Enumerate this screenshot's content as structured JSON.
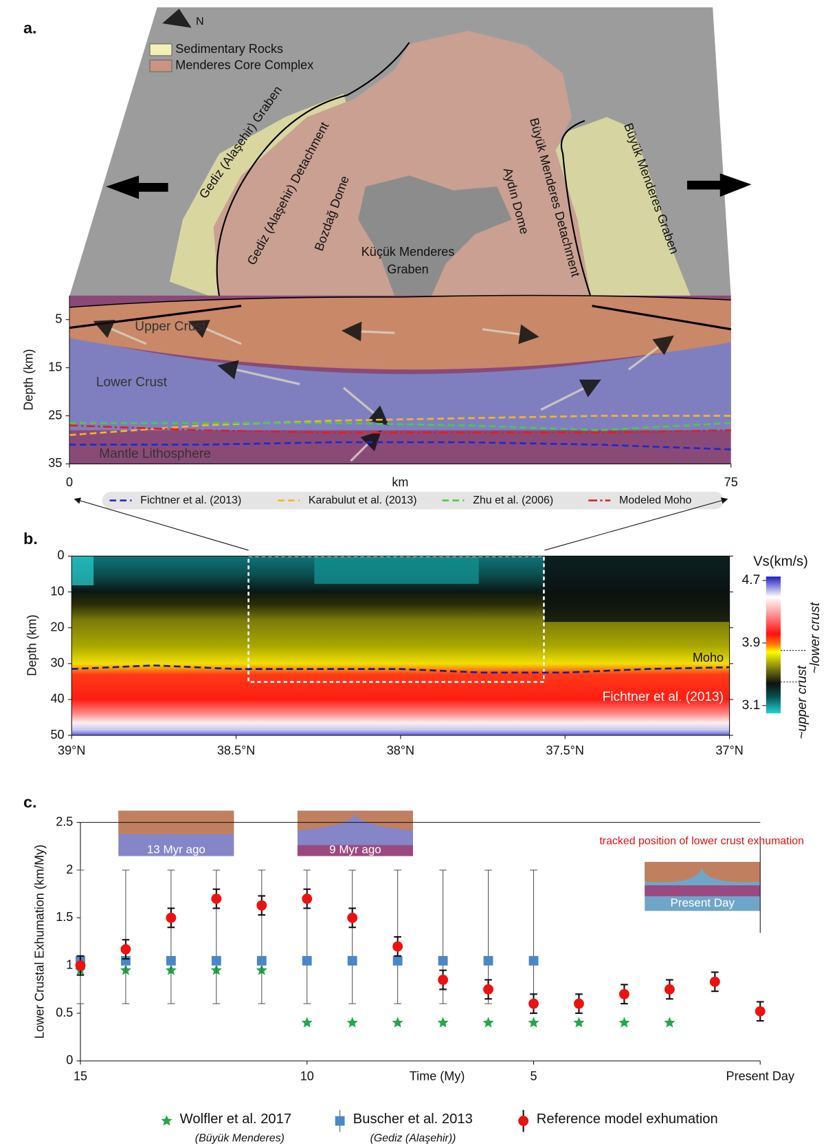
{
  "chart_data": [
    {
      "type": "section",
      "panel_label": "a.",
      "north_label": "N",
      "legend_areas": [
        {
          "name": "Sedimentary Rocks",
          "color": "#f4efb4"
        },
        {
          "name": "Menderes Core Complex",
          "color": "#c99483"
        }
      ],
      "map_labels": [
        "Gediz (Alaşehir) Graben",
        "Gediz (Alaşehir) Detachment",
        "Bozdağ Dome",
        [
          "Küçük Menderes",
          "Graben"
        ],
        "Aydın Dome",
        "Büyük Menderes Detachment",
        "Büyük Menderes Graben"
      ],
      "layer_labels": [
        "Upper Crust",
        "Lower Crust",
        "Mantle Lithosphere"
      ],
      "xlabel": "km",
      "ylabel": "Depth (km)",
      "xlim": [
        0,
        75
      ],
      "xticks": [
        0,
        75
      ],
      "ylim": [
        0,
        35
      ],
      "yticks": [
        5,
        15,
        25,
        35
      ],
      "y_inverted": true,
      "x": [
        0,
        15,
        30,
        45,
        60,
        75
      ],
      "series": [
        {
          "name": "Fichtner et al. (2013)",
          "color": "#1a2ad0",
          "dash": "dash",
          "values": [
            31,
            31,
            30.5,
            30.5,
            31,
            32
          ]
        },
        {
          "name": "Karabulut et al. (2013)",
          "color": "#f5b52a",
          "dash": "dash",
          "values": [
            29,
            27,
            26,
            25.5,
            25,
            25
          ]
        },
        {
          "name": "Zhu et al. (2006)",
          "color": "#44d040",
          "dash": "dash",
          "values": [
            26.5,
            26.5,
            26.5,
            27,
            28,
            26.5
          ]
        },
        {
          "name": "Modeled Moho",
          "color": "#e02020",
          "dash": "dashdot",
          "values": [
            27,
            28,
            28.5,
            28.5,
            28.5,
            28
          ]
        }
      ]
    },
    {
      "type": "contour",
      "panel_label": "b.",
      "ylabel": "Depth (km)",
      "xlim": [
        39,
        37
      ],
      "xticks": [
        {
          "value": 39,
          "label": "39°N"
        },
        {
          "value": 38.5,
          "label": "38.5°N"
        },
        {
          "value": 38,
          "label": "38°N"
        },
        {
          "value": 37.5,
          "label": "37.5°N"
        },
        {
          "value": 37,
          "label": "37°N"
        }
      ],
      "ylim": [
        0,
        50
      ],
      "yticks": [
        0,
        10,
        20,
        30,
        40,
        50
      ],
      "y_inverted": true,
      "colorbar_label": "Vs(km/s)",
      "colorbar_lim": [
        3.0,
        4.75
      ],
      "colorbar_ticks": [
        3.1,
        3.9,
        4.7
      ],
      "colorbar_notes": [
        "~upper crust",
        "~lower crust"
      ],
      "x": [
        39,
        38.75,
        38.5,
        38.25,
        38,
        37.75,
        37.5,
        37.25,
        37
      ],
      "series": [
        {
          "name": "Moho",
          "color": "#1a1aa8",
          "values": [
            31.5,
            30.5,
            31.5,
            31.5,
            31.5,
            32.5,
            32.5,
            31.5,
            31
          ]
        }
      ],
      "annotation": "Fichtner et al. (2013)"
    },
    {
      "type": "errorbar",
      "panel_label": "c.",
      "xlabel": "Time (My)",
      "ylabel": "Lower Crustal Exhumation (km/My)",
      "xlim": [
        15,
        0
      ],
      "xticks": [
        15,
        10,
        5,
        {
          "value": 0,
          "label": "Present Day"
        }
      ],
      "ylim": [
        0,
        2.5
      ],
      "yticks": [
        0,
        0.5,
        1,
        1.5,
        2,
        2.5
      ],
      "x": [
        15,
        14,
        13,
        12,
        11,
        10,
        9,
        8,
        7,
        6,
        5,
        4,
        3,
        2,
        1,
        0
      ],
      "series": [
        {
          "name": "Wolfler et al. 2017",
          "subtitle": "(Büyük Menderes)",
          "marker": "star",
          "color": "#22a84a",
          "values": [
            0.95,
            0.95,
            0.95,
            0.95,
            0.95,
            0.4,
            0.4,
            0.4,
            0.4,
            0.4,
            0.4,
            0.4,
            0.4,
            0.4,
            null,
            null
          ]
        },
        {
          "name": "Buscher et al. 2013",
          "subtitle": "(Gediz (Alaşehir))",
          "marker": "square",
          "color": "#4a86c8",
          "values": [
            1.05,
            1.05,
            1.05,
            1.05,
            1.05,
            1.05,
            1.05,
            1.05,
            1.05,
            1.05,
            1.05,
            null,
            null,
            null,
            null,
            null
          ],
          "error_minus": [
            0.45,
            0.45,
            0.45,
            0.45,
            0.45,
            0.45,
            0.45,
            0.45,
            0.45,
            0.45,
            0.45,
            null,
            null,
            null,
            null,
            null
          ],
          "error_plus": [
            0.95,
            0.95,
            0.95,
            0.95,
            0.95,
            0.95,
            0.95,
            0.95,
            0.95,
            0.95,
            0.95,
            null,
            null,
            null,
            null,
            null
          ]
        },
        {
          "name": "Reference model exhumation",
          "marker": "circle",
          "color": "#ee1111",
          "values": [
            1.0,
            1.17,
            1.5,
            1.7,
            1.63,
            1.7,
            1.5,
            1.2,
            0.85,
            0.75,
            0.6,
            0.6,
            0.7,
            0.75,
            0.83,
            0.52
          ],
          "error_minus": [
            0.1,
            0.1,
            0.1,
            0.1,
            0.1,
            0.1,
            0.1,
            0.1,
            0.1,
            0.1,
            0.1,
            0.1,
            0.1,
            0.1,
            0.1,
            0.1
          ],
          "error_plus": [
            0.1,
            0.1,
            0.1,
            0.1,
            0.1,
            0.1,
            0.1,
            0.1,
            0.1,
            0.1,
            0.1,
            0.1,
            0.1,
            0.1,
            0.1,
            0.1
          ]
        }
      ],
      "insets": [
        "13 Myr ago",
        "9 Myr ago",
        "Present Day"
      ],
      "annotation": "tracked position of lower crust exhumation"
    }
  ]
}
